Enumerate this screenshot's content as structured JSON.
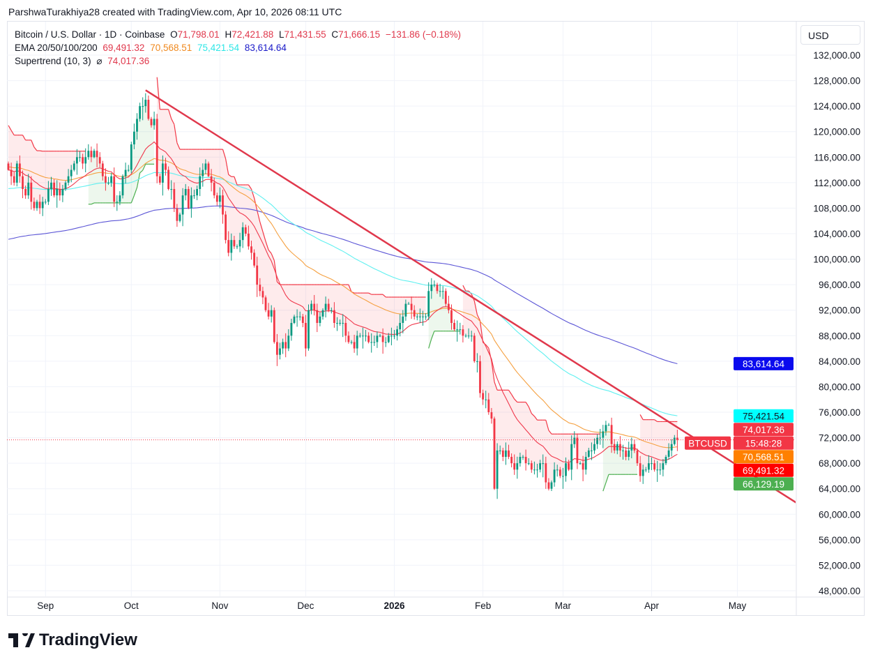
{
  "attribution": "ParshwaTurakhiya28 created with TradingView.com, Apr 10, 2026 08:11 UTC",
  "legend": {
    "symbol": "Bitcoin / U.S. Dollar · 1D · Coinbase",
    "o_label": "O",
    "o": "71,798.01",
    "h_label": "H",
    "h": "72,421.88",
    "l_label": "L",
    "l": "71,431.55",
    "c_label": "C",
    "c": "71,666.15",
    "change": "−131.86 (−0.18%)",
    "ema_label": "EMA 20/50/100/200",
    "ema20": "69,491.32",
    "ema50": "70,568.51",
    "ema100": "75,421.54",
    "ema200": "83,614.64",
    "st_label": "Supertrend (10, 3)",
    "st_icon": "⌀",
    "st_value": "74,017.36"
  },
  "currency": "USD",
  "brand": "TradingView",
  "chart_data": {
    "type": "candlestick",
    "title": "Bitcoin / U.S. Dollar · 1D · Coinbase",
    "start_date": "2025-08-19",
    "unit": "USD (thousands in closes)",
    "first_open": 115,
    "closes": [
      114,
      113,
      112,
      115,
      113,
      111,
      110,
      112,
      109,
      108,
      109,
      108,
      109,
      109,
      111,
      112,
      110,
      111,
      110,
      111,
      112,
      113,
      114,
      115,
      116,
      116,
      115,
      116,
      117,
      116,
      117,
      116,
      115,
      113,
      112,
      112,
      113,
      109,
      109,
      110,
      113,
      114,
      114,
      118,
      120,
      122,
      124,
      124,
      125,
      122,
      121,
      122,
      113,
      112,
      115,
      114,
      111,
      111,
      108,
      106,
      107,
      110,
      111,
      108,
      110,
      110,
      111,
      113,
      114,
      115,
      113,
      112,
      110,
      109,
      110,
      107,
      103,
      101,
      103,
      102,
      102,
      103,
      105,
      104,
      102,
      101,
      99,
      96,
      95,
      94,
      92,
      91,
      92,
      87,
      85,
      86,
      87,
      86,
      88,
      90,
      91,
      91,
      91,
      90,
      86,
      92,
      93,
      92,
      90,
      91,
      92,
      93,
      92,
      92,
      90,
      90,
      90,
      90,
      88,
      87,
      87,
      86,
      88,
      88,
      88,
      88,
      87,
      87,
      87,
      88,
      88,
      87,
      87,
      88,
      88,
      88,
      89,
      90,
      91,
      93,
      93,
      92,
      91,
      91,
      91,
      91,
      91,
      95,
      96,
      96,
      95,
      95,
      95,
      93,
      92,
      90,
      89,
      89,
      89,
      88,
      88,
      88,
      88,
      84,
      84,
      79,
      78,
      78,
      76,
      75,
      64,
      70,
      70,
      69,
      70,
      69,
      68,
      67,
      68,
      69,
      69,
      68,
      68,
      67,
      67,
      67,
      68,
      68,
      65,
      64,
      65,
      67,
      67,
      66,
      66,
      68,
      67,
      71,
      72,
      68,
      68,
      67,
      69,
      70,
      70,
      71,
      72,
      72,
      73,
      74,
      74,
      71,
      70,
      71,
      70,
      70,
      69,
      70,
      71,
      70,
      68,
      66,
      67,
      67,
      68,
      68,
      67,
      67,
      67,
      68,
      69,
      70,
      71,
      72,
      71.666
    ],
    "ema_seeds": {
      "ema20": 114,
      "ema50": 114.5,
      "ema100": 111,
      "ema200": 103
    },
    "supertrend": {
      "period": 10,
      "multiplier": 3
    },
    "trendline": {
      "from": {
        "date": "2025-10-06",
        "price": 126500
      },
      "to": {
        "date": "2026-05-22",
        "price": 61700
      }
    },
    "last_price": 71666.15,
    "ylim": [
      48000,
      132000
    ],
    "y_ticks": [
      "132,000.00",
      "128,000.00",
      "124,000.00",
      "120,000.00",
      "116,000.00",
      "112,000.00",
      "108,000.00",
      "104,000.00",
      "100,000.00",
      "96,000.00",
      "92,000.00",
      "88,000.00",
      "84,000.00",
      "80,000.00",
      "76,000.00",
      "72,000.00",
      "68,000.00",
      "64,000.00",
      "60,000.00",
      "56,000.00",
      "52,000.00",
      "48,000.00"
    ],
    "x_ticks": [
      {
        "label": "Sep",
        "date": "2025-09-01"
      },
      {
        "label": "Oct",
        "date": "2025-10-01"
      },
      {
        "label": "Nov",
        "date": "2025-11-01"
      },
      {
        "label": "Dec",
        "date": "2025-12-01"
      },
      {
        "label": "2026",
        "date": "2026-01-01",
        "bold": true
      },
      {
        "label": "Feb",
        "date": "2026-02-01"
      },
      {
        "label": "Mar",
        "date": "2026-03-01"
      },
      {
        "label": "Apr",
        "date": "2026-04-01"
      },
      {
        "label": "May",
        "date": "2026-05-01"
      }
    ],
    "axis_labels": [
      {
        "text": "83,614.64",
        "value": 83614.64,
        "bg": "#0a0aee",
        "fg": "#ffffff"
      },
      {
        "text": "75,421.54",
        "value": 75421.54,
        "bg": "#00ffff",
        "fg": "#131722"
      },
      {
        "text": "74,017.36",
        "value": 74017.36,
        "bg": "#f23645",
        "fg": "#ffffff"
      },
      {
        "text": "15:48:28",
        "value": 71666.15,
        "bg": "#f23645",
        "fg": "#ffffff",
        "tag": "BTCUSD"
      },
      {
        "text": "70,568.51",
        "value": 70568.51,
        "bg": "#ff8000",
        "fg": "#ffffff"
      },
      {
        "text": "69,491.32",
        "value": 69491.32,
        "bg": "#ff0000",
        "fg": "#ffffff"
      },
      {
        "text": "66,129.19",
        "value": 66129.19,
        "bg": "#4caf50",
        "fg": "#ffffff"
      }
    ],
    "colors": {
      "up": "#089981",
      "down": "#f23645",
      "ema20": "#f0384c",
      "ema50": "#f5a040",
      "ema100": "#5ff0f0",
      "ema200": "#5b55d6",
      "trend": "#e0384c",
      "st_up": "#4caf50",
      "st_down": "#f23645"
    }
  }
}
